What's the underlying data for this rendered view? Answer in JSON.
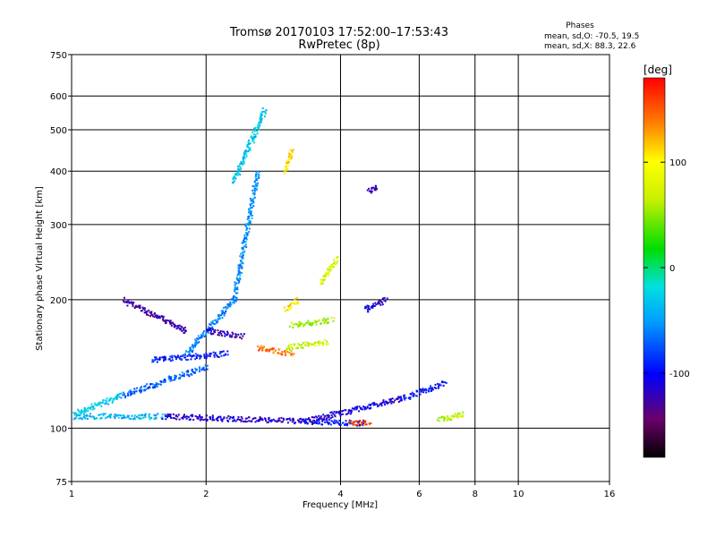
{
  "title_line1": "Tromsø 20170103 17:52:00–17:53:43",
  "title_line2": "RwPretec (8p)",
  "stats": {
    "heading": "Phases",
    "line_o": "mean, sd,O:  -70.5, 19.5",
    "line_x": "mean, sd,X:   88.3, 22.6"
  },
  "colorbar": {
    "unit_label": "[deg]",
    "range": [
      -180,
      180
    ],
    "ticks": [
      {
        "value": 100,
        "label": "100"
      },
      {
        "value": 0,
        "label": "0"
      },
      {
        "value": -100,
        "label": "-100"
      }
    ],
    "colormap": "rainbow"
  },
  "chart_data": {
    "type": "scatter",
    "title": "Tromsø 20170103 17:52:00–17:53:43",
    "subtitle": "RwPretec (8p)",
    "xlabel": "Frequency [MHz]",
    "ylabel": "Stationary phase Virtual Height [km]",
    "x_scale": "log",
    "y_scale": "log",
    "xlim": [
      1,
      16
    ],
    "ylim": [
      75,
      750
    ],
    "grid": true,
    "x_ticks": [
      {
        "value": 1,
        "label": "1"
      },
      {
        "value": 2,
        "label": "2"
      },
      {
        "value": 4,
        "label": "4"
      },
      {
        "value": 6,
        "label": "6"
      },
      {
        "value": 8,
        "label": "8"
      },
      {
        "value": 10,
        "label": "10"
      },
      {
        "value": 16,
        "label": "16"
      }
    ],
    "y_ticks": [
      {
        "value": 75,
        "label": "75"
      },
      {
        "value": 100,
        "label": "100"
      },
      {
        "value": 200,
        "label": "200"
      },
      {
        "value": 300,
        "label": "300"
      },
      {
        "value": 400,
        "label": "400"
      },
      {
        "value": 500,
        "label": "500"
      },
      {
        "value": 600,
        "label": "600"
      },
      {
        "value": 750,
        "label": "750"
      }
    ],
    "traces": [
      {
        "x": [
          1.0,
          1.6
        ],
        "y": [
          107,
          107
        ],
        "phase": -40
      },
      {
        "x": [
          1.6,
          3.5
        ],
        "y": [
          107,
          104
        ],
        "phase": -115
      },
      {
        "x": [
          3.5,
          4.5
        ],
        "y": [
          104,
          103
        ],
        "phase": -95
      },
      {
        "x": [
          3.3,
          5.5
        ],
        "y": [
          104,
          118
        ],
        "phase": -110
      },
      {
        "x": [
          5.5,
          6.8
        ],
        "y": [
          118,
          128
        ],
        "phase": -95
      },
      {
        "x": [
          1.0,
          1.3
        ],
        "y": [
          108,
          120
        ],
        "phase": -30
      },
      {
        "x": [
          1.3,
          2.0
        ],
        "y": [
          120,
          140
        ],
        "phase": -70
      },
      {
        "x": [
          1.5,
          2.2
        ],
        "y": [
          145,
          150
        ],
        "phase": -95
      },
      {
        "x": [
          1.8,
          2.3
        ],
        "y": [
          150,
          200
        ],
        "phase": -60
      },
      {
        "x": [
          2.3,
          2.6
        ],
        "y": [
          200,
          400
        ],
        "phase": -55
      },
      {
        "x": [
          2.3,
          2.7
        ],
        "y": [
          380,
          560
        ],
        "phase": -30
      },
      {
        "x": [
          2.0,
          2.4
        ],
        "y": [
          170,
          165
        ],
        "phase": -120
      },
      {
        "x": [
          1.3,
          1.8
        ],
        "y": [
          200,
          170
        ],
        "phase": -125
      },
      {
        "x": [
          2.6,
          3.1
        ],
        "y": [
          155,
          150
        ],
        "phase": 140
      },
      {
        "x": [
          3.0,
          3.7
        ],
        "y": [
          155,
          160
        ],
        "phase": 70
      },
      {
        "x": [
          3.1,
          3.8
        ],
        "y": [
          175,
          180
        ],
        "phase": 55
      },
      {
        "x": [
          3.0,
          3.2
        ],
        "y": [
          190,
          200
        ],
        "phase": 110
      },
      {
        "x": [
          3.6,
          3.9
        ],
        "y": [
          220,
          250
        ],
        "phase": 75
      },
      {
        "x": [
          3.0,
          3.1
        ],
        "y": [
          400,
          450
        ],
        "phase": 110
      },
      {
        "x": [
          4.6,
          4.8
        ],
        "y": [
          360,
          370
        ],
        "phase": -120
      },
      {
        "x": [
          4.5,
          5.0
        ],
        "y": [
          190,
          200
        ],
        "phase": -110
      },
      {
        "x": [
          6.6,
          7.5
        ],
        "y": [
          105,
          108
        ],
        "phase": 60
      },
      {
        "x": [
          4.2,
          4.6
        ],
        "y": [
          103,
          104
        ],
        "phase": 160
      }
    ]
  }
}
